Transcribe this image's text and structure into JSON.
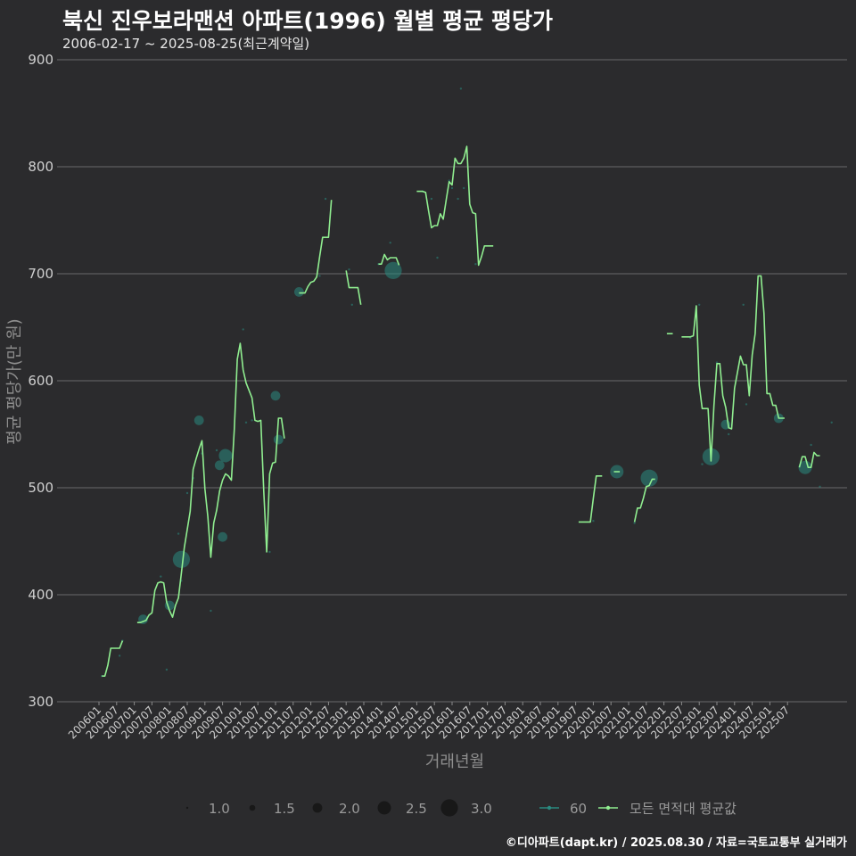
{
  "header": {
    "title": "북신 진우보라맨션 아파트(1996) 월별 평균 평당가",
    "subtitle": "2006-02-17 ~ 2025-08-25(최근계약일)"
  },
  "footer": {
    "credit": "©디아파트(dapt.kr) / 2025.08.30 / 자료=국토교통부 실거래가"
  },
  "colors": {
    "background": "#2b2b2d",
    "grid": "#6a6a6a",
    "avg_line": "#90ee90",
    "points": "#2a8a80"
  },
  "chart_data": {
    "type": "line",
    "xlabel": "거래년월",
    "ylabel": "평균 평당가(만 원)",
    "ylim": [
      300,
      900
    ],
    "yticks": [
      300,
      400,
      500,
      600,
      700,
      800,
      900
    ],
    "x_ticks": [
      "200601",
      "200607",
      "200701",
      "200707",
      "200801",
      "200807",
      "200901",
      "200907",
      "201001",
      "201007",
      "201101",
      "201107",
      "201201",
      "201207",
      "201301",
      "201307",
      "201401",
      "201407",
      "201501",
      "201507",
      "201601",
      "201607",
      "201701",
      "201707",
      "201801",
      "201807",
      "201901",
      "201907",
      "202001",
      "202007",
      "202101",
      "202107",
      "202201",
      "202207",
      "202301",
      "202307",
      "202401",
      "202407",
      "202501",
      "202507"
    ],
    "x_range_months": [
      0,
      237
    ],
    "legend": {
      "size_title": "",
      "size_labels": [
        "1.0",
        "1.5",
        "2.0",
        "2.5",
        "3.0"
      ],
      "size_values": [
        1.0,
        1.5,
        2.0,
        2.5,
        3.0
      ],
      "series_labels": [
        "60",
        "모든 면적대 평균값"
      ]
    },
    "series": [
      {
        "name": "모든 면적대 평균값",
        "segments": [
          [
            [
              1,
              324
            ],
            [
              2,
              324
            ],
            [
              3,
              334
            ],
            [
              4,
              350
            ],
            [
              5,
              350
            ],
            [
              6,
              350
            ],
            [
              7,
              350
            ],
            [
              8,
              357
            ]
          ],
          [
            [
              13,
              374
            ],
            [
              14,
              374
            ],
            [
              15,
              375
            ],
            [
              16,
              376
            ],
            [
              17,
              381
            ],
            [
              18,
              383
            ],
            [
              19,
              404
            ],
            [
              20,
              411
            ],
            [
              21,
              412
            ],
            [
              22,
              411
            ],
            [
              23,
              393
            ],
            [
              24,
              385
            ],
            [
              25,
              379
            ],
            [
              26,
              390
            ],
            [
              27,
              397
            ],
            [
              28,
              420
            ],
            [
              29,
              444
            ],
            [
              30,
              461
            ],
            [
              31,
              478
            ],
            [
              32,
              517
            ],
            [
              33,
              527
            ],
            [
              34,
              536
            ],
            [
              35,
              544
            ],
            [
              36,
              499
            ],
            [
              37,
              473
            ],
            [
              38,
              435
            ],
            [
              39,
              467
            ],
            [
              40,
              479
            ],
            [
              41,
              497
            ],
            [
              42,
              507
            ],
            [
              43,
              513
            ],
            [
              44,
              511
            ],
            [
              45,
              507
            ],
            [
              46,
              555
            ],
            [
              47,
              620
            ],
            [
              48,
              635
            ],
            [
              49,
              610
            ],
            [
              50,
              598
            ],
            [
              51,
              591
            ],
            [
              52,
              584
            ],
            [
              53,
              563
            ],
            [
              54,
              562
            ],
            [
              55,
              563
            ],
            [
              56,
              497
            ],
            [
              57,
              440
            ],
            [
              58,
              513
            ],
            [
              59,
              523
            ],
            [
              60,
              524
            ],
            [
              61,
              565
            ],
            [
              62,
              565
            ],
            [
              63,
              546
            ]
          ],
          [
            [
              68,
              682
            ],
            [
              69,
              682
            ],
            [
              70,
              682
            ],
            [
              71,
              688
            ],
            [
              72,
              692
            ],
            [
              73,
              693
            ],
            [
              74,
              697
            ],
            [
              75,
              716
            ],
            [
              76,
              734
            ],
            [
              77,
              734
            ],
            [
              78,
              734
            ],
            [
              79,
              769
            ]
          ],
          [
            [
              84,
              703
            ],
            [
              85,
              687
            ],
            [
              86,
              687
            ],
            [
              87,
              687
            ],
            [
              88,
              687
            ],
            [
              89,
              671
            ]
          ],
          [
            [
              95,
              709
            ],
            [
              96,
              709
            ],
            [
              97,
              718
            ],
            [
              98,
              713
            ],
            [
              99,
              715
            ],
            [
              100,
              715
            ],
            [
              101,
              715
            ],
            [
              102,
              708
            ]
          ],
          [
            [
              108,
              777
            ],
            [
              109,
              777
            ],
            [
              110,
              777
            ],
            [
              111,
              776
            ],
            [
              112,
              759
            ],
            [
              113,
              743
            ],
            [
              114,
              745
            ],
            [
              115,
              745
            ],
            [
              116,
              756
            ],
            [
              117,
              751
            ],
            [
              118,
              769
            ],
            [
              119,
              786
            ],
            [
              120,
              783
            ],
            [
              121,
              808
            ],
            [
              122,
              803
            ],
            [
              123,
              803
            ],
            [
              124,
              808
            ],
            [
              125,
              819
            ],
            [
              126,
              765
            ],
            [
              127,
              757
            ],
            [
              128,
              756
            ],
            [
              129,
              708
            ],
            [
              130,
              716
            ],
            [
              131,
              726
            ],
            [
              132,
              726
            ],
            [
              133,
              726
            ],
            [
              134,
              726
            ]
          ],
          [
            [
              163,
              468
            ],
            [
              164,
              468
            ],
            [
              165,
              468
            ],
            [
              166,
              468
            ],
            [
              167,
              468
            ],
            [
              168,
              490
            ],
            [
              169,
              511
            ],
            [
              170,
              511
            ],
            [
              171,
              511
            ]
          ],
          [
            [
              175,
              515
            ],
            [
              176,
              515
            ],
            [
              177,
              515
            ]
          ],
          [
            [
              182,
              468
            ],
            [
              183,
              481
            ],
            [
              184,
              481
            ],
            [
              185,
              490
            ],
            [
              186,
              501
            ],
            [
              187,
              502
            ],
            [
              188,
              508
            ],
            [
              189,
              508
            ]
          ],
          [
            [
              193,
              644
            ],
            [
              194,
              644
            ],
            [
              195,
              644
            ]
          ],
          [
            [
              198,
              641
            ],
            [
              199,
              641
            ],
            [
              200,
              641
            ],
            [
              201,
              641
            ],
            [
              202,
              642
            ],
            [
              203,
              670
            ],
            [
              204,
              596
            ],
            [
              205,
              574
            ],
            [
              206,
              574
            ],
            [
              207,
              574
            ],
            [
              208,
              525
            ],
            [
              209,
              577
            ],
            [
              210,
              616
            ],
            [
              211,
              616
            ],
            [
              212,
              586
            ],
            [
              213,
              575
            ],
            [
              214,
              556
            ],
            [
              215,
              555
            ],
            [
              216,
              593
            ],
            [
              217,
              608
            ],
            [
              218,
              623
            ],
            [
              219,
              615
            ],
            [
              220,
              615
            ],
            [
              221,
              586
            ],
            [
              222,
              624
            ],
            [
              223,
              644
            ],
            [
              224,
              698
            ],
            [
              225,
              698
            ],
            [
              226,
              663
            ],
            [
              227,
              588
            ],
            [
              228,
              588
            ],
            [
              229,
              577
            ],
            [
              230,
              577
            ],
            [
              231,
              565
            ],
            [
              232,
              565
            ],
            [
              233,
              565
            ]
          ],
          [
            [
              238,
              519
            ],
            [
              239,
              529
            ],
            [
              240,
              529
            ],
            [
              241,
              519
            ],
            [
              242,
              519
            ],
            [
              243,
              533
            ],
            [
              244,
              530
            ],
            [
              245,
              530
            ]
          ]
        ]
      },
      {
        "name": "60",
        "points": [
          [
            1,
            324,
            1.0
          ],
          [
            7,
            343,
            1.0
          ],
          [
            8,
            357,
            1.0
          ],
          [
            15,
            377,
            2.0
          ],
          [
            21,
            417,
            1.0
          ],
          [
            23,
            330,
            1.0
          ],
          [
            24,
            390,
            2.0
          ],
          [
            27,
            457,
            1.0
          ],
          [
            28,
            413,
            1.0
          ],
          [
            28,
            433,
            3.0
          ],
          [
            30,
            495,
            1.0
          ],
          [
            32,
            509,
            1.0
          ],
          [
            34,
            563,
            2.0
          ],
          [
            35,
            532,
            1.0
          ],
          [
            38,
            385,
            1.0
          ],
          [
            40,
            535,
            1.0
          ],
          [
            41,
            521,
            2.0
          ],
          [
            42,
            454,
            2.0
          ],
          [
            43,
            530,
            2.5
          ],
          [
            49,
            648,
            1.0
          ],
          [
            50,
            561,
            1.0
          ],
          [
            52,
            563,
            1.0
          ],
          [
            58,
            440,
            1.0
          ],
          [
            60,
            586,
            2.0
          ],
          [
            61,
            545,
            2.0
          ],
          [
            68,
            683,
            2.0
          ],
          [
            75,
            698,
            1.0
          ],
          [
            77,
            770,
            1.0
          ],
          [
            85,
            704,
            1.0
          ],
          [
            86,
            671,
            1.0
          ],
          [
            95,
            709,
            1.0
          ],
          [
            99,
            729,
            1.0
          ],
          [
            100,
            703,
            3.0
          ],
          [
            110,
            777,
            1.0
          ],
          [
            113,
            770,
            1.0
          ],
          [
            115,
            715,
            1.0
          ],
          [
            119,
            787,
            1.0
          ],
          [
            120,
            780,
            1.0
          ],
          [
            122,
            770,
            1.0
          ],
          [
            123,
            873,
            1.0
          ],
          [
            124,
            780,
            1.0
          ],
          [
            128,
            709,
            1.0
          ],
          [
            168,
            469,
            1.0
          ],
          [
            176,
            515,
            2.5
          ],
          [
            182,
            467,
            1.0
          ],
          [
            187,
            509,
            3.0
          ],
          [
            201,
            640,
            1.0
          ],
          [
            204,
            671,
            1.0
          ],
          [
            205,
            522,
            1.0
          ],
          [
            208,
            529,
            3.0
          ],
          [
            210,
            617,
            1.0
          ],
          [
            213,
            559,
            2.0
          ],
          [
            214,
            550,
            1.0
          ],
          [
            219,
            671,
            1.0
          ],
          [
            220,
            578,
            1.0
          ],
          [
            231,
            565,
            2.0
          ],
          [
            240,
            519,
            2.5
          ],
          [
            242,
            540,
            1.0
          ],
          [
            245,
            501,
            1.0
          ],
          [
            249,
            561,
            1.0
          ]
        ]
      }
    ]
  }
}
